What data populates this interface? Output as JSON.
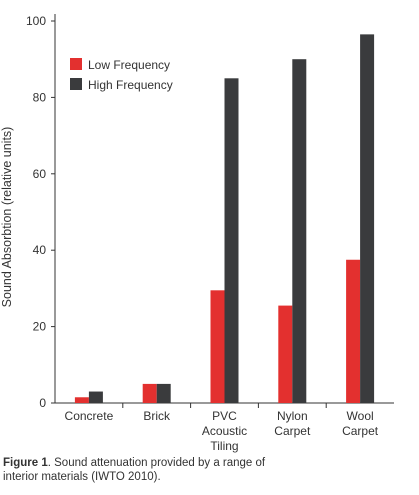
{
  "chart_data": {
    "type": "bar",
    "categories": [
      [
        "Concrete"
      ],
      [
        "Brick"
      ],
      [
        "PVC",
        "Acoustic",
        "Tiling"
      ],
      [
        "Nylon",
        "Carpet"
      ],
      [
        "Wool",
        "Carpet"
      ]
    ],
    "series": [
      {
        "name": "Low Frequency",
        "color": "#e3302f",
        "values": [
          1.5,
          5,
          29.5,
          25.5,
          37.5
        ]
      },
      {
        "name": "High Frequency",
        "color": "#3a3b3d",
        "values": [
          3,
          5,
          85,
          90,
          96.5
        ]
      }
    ],
    "ylabel": "Sound Absorbtion (relative units)",
    "xlabel": "",
    "ylim": [
      0,
      100
    ],
    "yticks": [
      0,
      20,
      40,
      60,
      80,
      100
    ],
    "legend_position": "top-left",
    "grid": false
  },
  "caption": {
    "label": "Figure 1",
    "text": ". Sound attenuation provided by a range of interior materials (IWTO 2010)."
  }
}
